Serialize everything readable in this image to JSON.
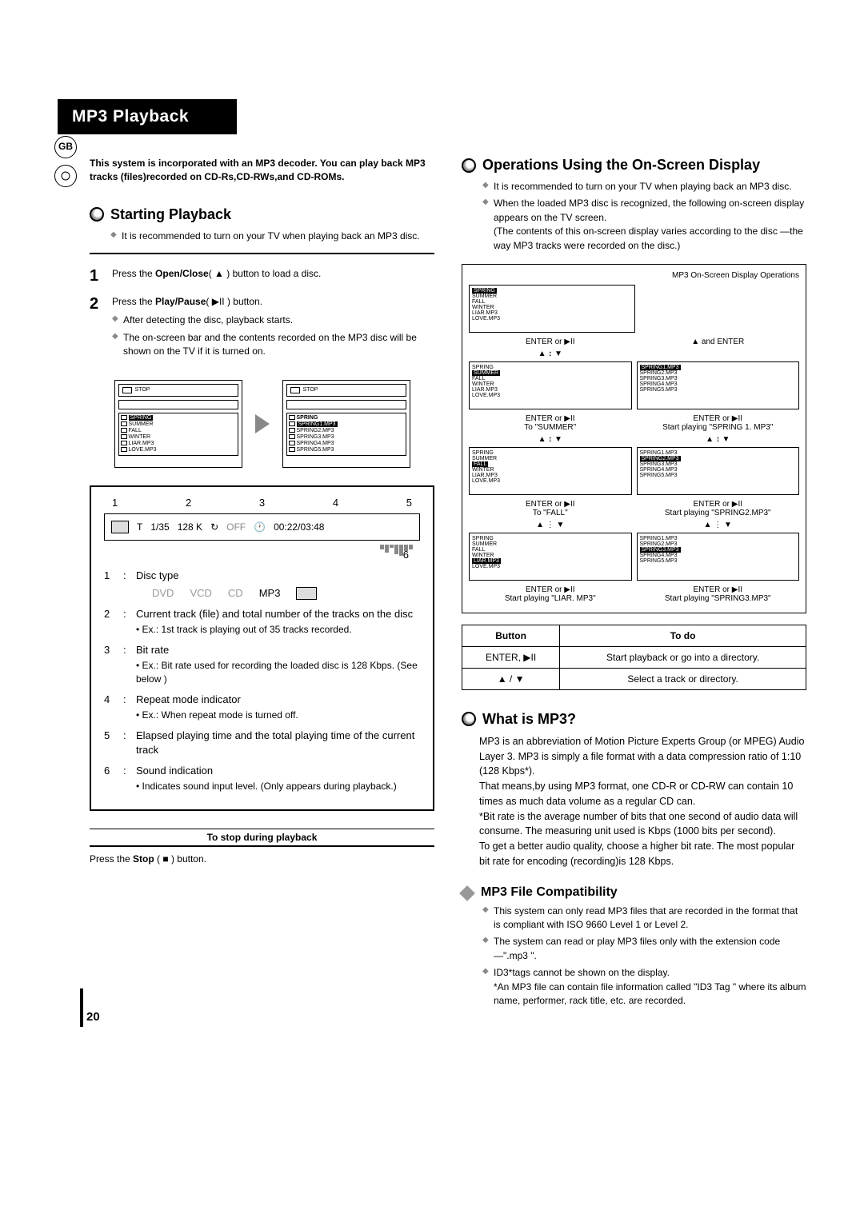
{
  "page_number": "20",
  "region_badge": "GB",
  "title": "MP3 Playback",
  "intro": "This system is incorporated with an MP3 decoder. You can play back MP3 tracks (files)recorded on CD-Rs,CD-RWs,and CD-ROMs.",
  "left": {
    "starting": {
      "heading": "Starting Playback",
      "note": "It is recommended to turn on your TV when playing back an MP3 disc.",
      "step1": {
        "num": "1",
        "pre": "Press the ",
        "bold": "Open/Close",
        "post": "( ▲ ) button to load a disc."
      },
      "step2": {
        "num": "2",
        "pre": "Press the ",
        "bold": "Play/Pause",
        "post": "( ▶II ) button.",
        "sub1": "After detecting the disc, playback starts.",
        "sub2": "The on-screen bar and the contents recorded on the MP3 disc will be shown on the TV if it is turned on."
      },
      "screens": {
        "left_items": [
          "SPRING",
          "SUMMER",
          "FALL",
          "WINTER",
          "LIAR.MP3",
          "LOVE.MP3"
        ],
        "right_folder": "SPRING",
        "right_items": [
          "SPRING1.MP3",
          "SPRING2.MP3",
          "SPRING3.MP3",
          "SPRING4.MP3",
          "SPRING5.MP3"
        ]
      },
      "panel": {
        "nums": [
          "1",
          "2",
          "3",
          "4",
          "5"
        ],
        "track": "1/35",
        "bitrate": "128 K",
        "repeat": "OFF",
        "time": "00:22/03:48",
        "num6": "6",
        "defs": [
          {
            "n": "1",
            "label": "Disc type",
            "types": [
              "DVD",
              "VCD",
              "CD",
              "MP3"
            ]
          },
          {
            "n": "2",
            "label": "Current track (file) and total number of the tracks on the disc",
            "sub": "Ex.: 1st track is playing out of 35 tracks recorded."
          },
          {
            "n": "3",
            "label": "Bit rate",
            "sub": "Ex.: Bit rate used for recording the loaded disc is 128 Kbps. (See below )"
          },
          {
            "n": "4",
            "label": "Repeat mode indicator",
            "sub": "Ex.: When repeat mode is turned off."
          },
          {
            "n": "5",
            "label": "Elapsed playing time and the total playing time of the current track"
          },
          {
            "n": "6",
            "label": "Sound indication",
            "sub": "Indicates sound input level. (Only appears during playback.)"
          }
        ]
      },
      "stop": {
        "heading": "To stop during playback",
        "pre": "Press the ",
        "bold": "Stop",
        "post": " ( ■ ) button."
      }
    }
  },
  "right": {
    "operations": {
      "heading": "Operations Using the On-Screen Display",
      "note1": "It is recommended to turn on your TV when playing back an MP3 disc.",
      "note2": "When the loaded MP3 disc is recognized, the following on-screen display appears on the TV screen.",
      "note2_paren": "(The contents of this on-screen display varies according to the disc —the way MP3 tracks were recorded on the disc.)",
      "diagram_title": "MP3 On-Screen Display Operations",
      "diagram": {
        "root_items": [
          "SPRING",
          "SUMMER",
          "FALL",
          "WINTER",
          "LIAR.MP3",
          "LOVE.MP3"
        ],
        "enter_label": "ENTER or ▶II",
        "nav_label": "▲ and ENTER",
        "to_summer": "To \"SUMMER\"",
        "to_fall": "To \"FALL\"",
        "spring_items": [
          "SPRING1.MP3",
          "SPRING2.MP3",
          "SPRING3.MP3",
          "SPRING4.MP3",
          "SPRING5.MP3"
        ],
        "start1": "Start playing \"SPRING 1. MP3\"",
        "start2": "Start playing \"SPRING2.MP3\"",
        "start_liar": "Start playing \"LIAR. MP3\"",
        "start3": "Start playing \"SPRING3.MP3\""
      },
      "table": {
        "h_button": "Button",
        "h_todo": "To do",
        "r1_btn": "ENTER, ▶II",
        "r1_todo": "Start playback or go into a directory.",
        "r2_btn": "▲ / ▼",
        "r2_todo": "Select a track or directory."
      }
    },
    "what_is": {
      "heading": "What is MP3?",
      "body": "MP3 is an abbreviation of Motion Picture Experts Group (or MPEG) Audio Layer 3. MP3 is simply a file format with a data compression ratio of 1:10 (128 Kbps*).\nThat means,by using MP3 format, one CD-R or CD-RW can contain 10 times as much data volume as a regular CD can.\n*Bit rate is the average number of bits that one second of audio data will consume. The measuring unit used is Kbps (1000 bits per second).\nTo get a better audio quality, choose a higher bit rate. The most popular bit rate for encoding (recording)is 128 Kbps."
    },
    "compat": {
      "heading": "MP3 File Compatibility",
      "b1": "This system can only read MP3 files that are recorded in the format that is compliant with ISO 9660 Level 1 or Level 2.",
      "b2": "The system can read or play MP3 files only with the extension code —\".mp3 \".",
      "b3": "ID3*tags cannot be shown on the display.\n*An MP3 file can contain file information called \"ID3 Tag \" where its album name, performer, rack title, etc. are recorded."
    }
  }
}
